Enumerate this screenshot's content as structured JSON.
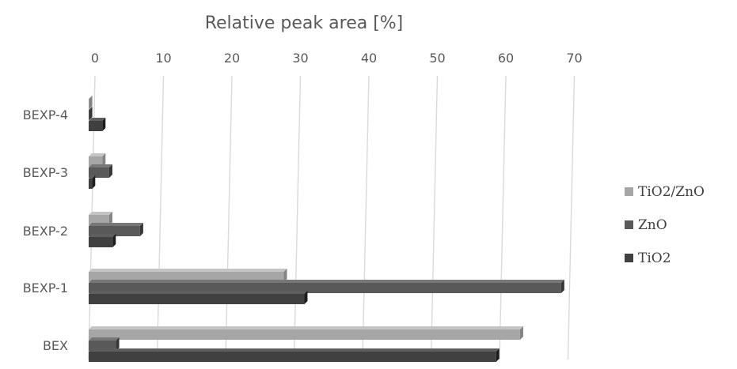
{
  "chart_data": {
    "type": "bar",
    "orientation": "horizontal",
    "style": "3d",
    "title": "Relative peak area [%]",
    "xlabel": "Relative peak area [%]",
    "ylabel": "",
    "categories": [
      "BEX",
      "BEXP-1",
      "BEXP-2",
      "BEXP-3",
      "BEXP-4"
    ],
    "xlim": [
      0,
      70
    ],
    "xticks": [
      0,
      10,
      20,
      30,
      40,
      50,
      60,
      70
    ],
    "axis_position": "top",
    "grid": true,
    "legend_position": "right",
    "series": [
      {
        "name": "TiO2/ZnO",
        "color": "#a6a6a6",
        "values": [
          63,
          28.5,
          3,
          2,
          0
        ]
      },
      {
        "name": "ZnO",
        "color": "#595959",
        "values": [
          4,
          69,
          7.5,
          3,
          0
        ]
      },
      {
        "name": "TiO2",
        "color": "#404040",
        "values": [
          59.5,
          31.5,
          3.5,
          0.5,
          2
        ]
      }
    ]
  }
}
